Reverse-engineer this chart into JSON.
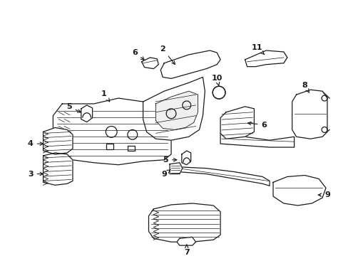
{
  "bg_color": "#ffffff",
  "line_color": "#1a1a1a",
  "lw": 0.9,
  "fig_width": 4.89,
  "fig_height": 3.6,
  "dpi": 100
}
